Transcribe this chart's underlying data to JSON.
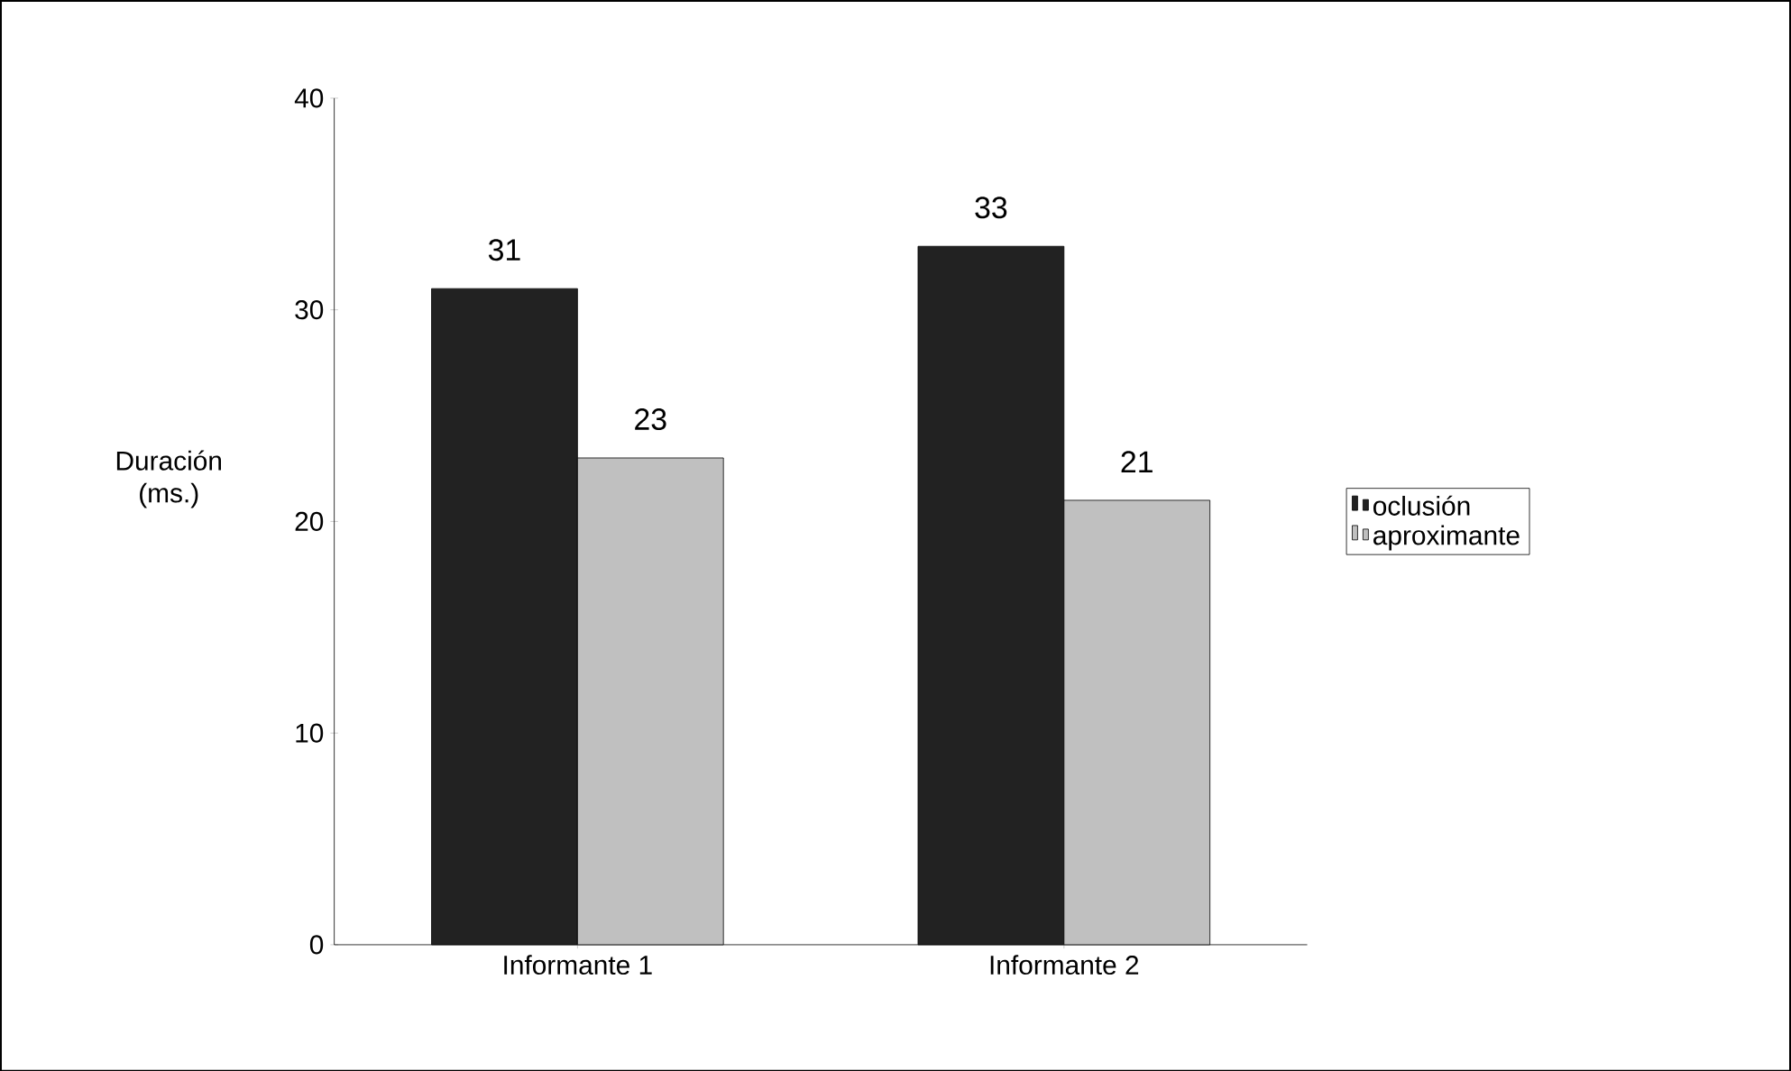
{
  "chart_data": {
    "type": "bar",
    "ylabel": "Duración (ms.)",
    "categories": [
      "Informante 1",
      "Informante 2"
    ],
    "series": [
      {
        "name": "oclusión",
        "color": "#222222",
        "values": [
          31,
          33
        ]
      },
      {
        "name": "aproximante",
        "color": "#c0c0c0",
        "values": [
          23,
          21
        ]
      }
    ],
    "ylim": [
      0,
      40
    ],
    "yticks": [
      0,
      10,
      20,
      30,
      40
    ],
    "data_labels": true,
    "legend": "right",
    "grid": false
  }
}
